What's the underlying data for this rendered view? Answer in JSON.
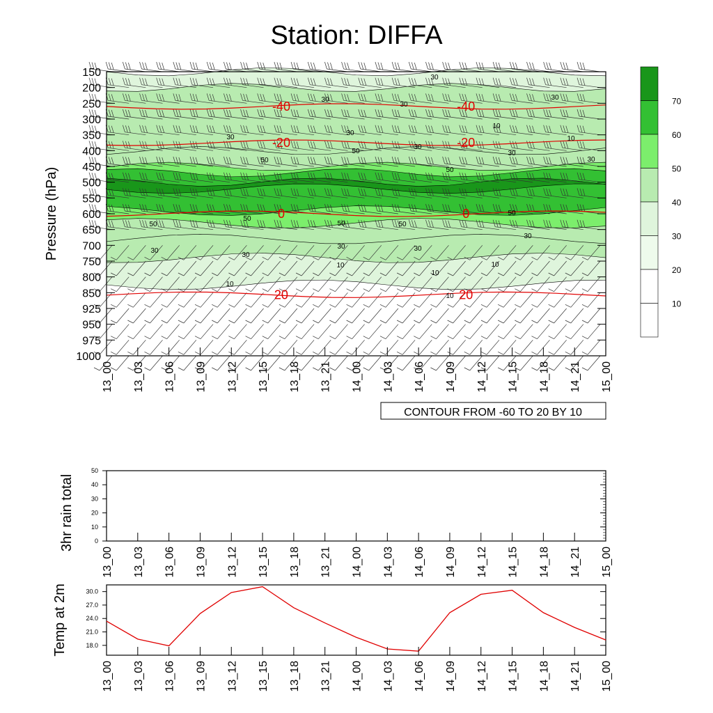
{
  "title": "Station: DIFFA",
  "colors": {
    "red": "#e00000",
    "shade_low": "#dff5dc",
    "shade_mid": "#b8ebb0",
    "shade_50": "#7cee6c",
    "shade_60": "#33c033",
    "shade_70": "#19961a"
  },
  "chart_data": [
    {
      "type": "heatmap",
      "name": "cross-section",
      "ylabel": "Pressure (hPa)",
      "ylevels": [
        150,
        200,
        250,
        300,
        350,
        400,
        450,
        500,
        550,
        600,
        650,
        700,
        750,
        800,
        850,
        925,
        950,
        975,
        1000
      ],
      "time_labels": [
        "13_00",
        "13_03",
        "13_06",
        "13_09",
        "13_12",
        "13_15",
        "13_18",
        "13_21",
        "14_00",
        "14_03",
        "14_06",
        "14_09",
        "14_12",
        "14_15",
        "14_18",
        "14_21",
        "15_00"
      ],
      "contour_info": "CONTOUR FROM -60 TO 20 BY 10",
      "colorbar_levels": [
        10,
        20,
        30,
        40,
        50,
        60,
        70
      ],
      "wind_shading_bands": [
        {
          "name": "band-20-30",
          "min": 20,
          "max": 30,
          "top_hpa": 150,
          "bottom_hpa": 825
        },
        {
          "name": "band-30-40",
          "min": 30,
          "max": 40,
          "top_hpa": 200,
          "bottom_hpa": 740
        },
        {
          "name": "band-40-50",
          "min": 40,
          "max": 50,
          "top_hpa": 400,
          "bottom_hpa": 680
        },
        {
          "name": "band-50-60",
          "min": 50,
          "max": 60,
          "top_hpa": 450,
          "bottom_hpa": 630
        },
        {
          "name": "band-60-70",
          "min": 60,
          "max": 70,
          "top_hpa": 470,
          "bottom_hpa": 590
        },
        {
          "name": "band-70-80",
          "min": 70,
          "max": 80,
          "top_hpa": 500,
          "bottom_hpa": 520
        }
      ],
      "temperature_contours": [
        {
          "value": "-40",
          "label": "-40",
          "pressure_hpa": 260
        },
        {
          "value": "-20",
          "label": "-20",
          "pressure_hpa": 375
        },
        {
          "value": "0",
          "label": "0",
          "pressure_hpa": 600
        },
        {
          "value": "20",
          "label": "20",
          "pressure_hpa": 860
        }
      ],
      "contour_labels": [
        "10",
        "20",
        "30",
        "40",
        "50"
      ]
    },
    {
      "type": "bar",
      "name": "rainfall",
      "ylabel": "3hr rain total",
      "ylim": [
        0,
        50
      ],
      "yticks": [
        0,
        10,
        20,
        30,
        40,
        50
      ],
      "categories": [
        "13_00",
        "13_03",
        "13_06",
        "13_09",
        "13_12",
        "13_15",
        "13_18",
        "13_21",
        "14_00",
        "14_03",
        "14_06",
        "14_09",
        "14_12",
        "14_15",
        "14_18",
        "14_21",
        "15_00"
      ],
      "values": [
        0,
        0,
        0,
        0,
        0,
        0,
        0,
        0,
        0,
        0,
        0,
        0,
        0,
        0,
        0,
        0,
        0
      ]
    },
    {
      "type": "line",
      "name": "temperature",
      "ylabel": "Temp at 2m",
      "ylim": [
        15.8,
        31.5
      ],
      "yticks": [
        "18.0",
        "21.0",
        "24.0",
        "27.0",
        "30.0"
      ],
      "categories": [
        "13_00",
        "13_03",
        "13_06",
        "13_09",
        "13_12",
        "13_15",
        "13_18",
        "13_21",
        "14_00",
        "14_03",
        "14_06",
        "14_09",
        "14_12",
        "14_15",
        "14_18",
        "14_21",
        "15_00"
      ],
      "values": [
        23.4,
        19.4,
        17.9,
        25.1,
        29.8,
        31.1,
        26.4,
        23.0,
        19.8,
        17.2,
        16.7,
        25.3,
        29.4,
        30.3,
        25.3,
        22.0,
        19.2
      ]
    }
  ]
}
